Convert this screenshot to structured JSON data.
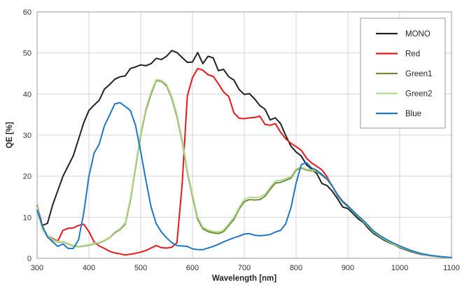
{
  "chart_data": {
    "type": "line",
    "title": "",
    "xlabel": "Wavelength [nm]",
    "ylabel": "QE [%]",
    "xlim": [
      300,
      1100
    ],
    "ylim": [
      0,
      60
    ],
    "x_ticks": [
      300,
      400,
      500,
      600,
      700,
      800,
      900,
      1000,
      1100
    ],
    "y_ticks": [
      0,
      10,
      20,
      30,
      40,
      50,
      60
    ],
    "x_tick_labels": [
      "300",
      "400",
      "500",
      "600",
      "700",
      "800",
      "900",
      "1000",
      "1100"
    ],
    "y_tick_labels": [
      "0",
      "10",
      "20",
      "30",
      "40",
      "50",
      "60"
    ],
    "grid": true,
    "legend_position": "top-right",
    "series": [
      {
        "name": "MONO",
        "color": "#222222",
        "x": [
          300,
          310,
          320,
          330,
          340,
          350,
          360,
          370,
          380,
          390,
          400,
          410,
          420,
          430,
          440,
          450,
          460,
          470,
          480,
          490,
          500,
          510,
          520,
          530,
          540,
          550,
          560,
          570,
          580,
          590,
          600,
          610,
          620,
          630,
          640,
          650,
          660,
          670,
          680,
          690,
          700,
          710,
          720,
          730,
          740,
          750,
          760,
          770,
          780,
          790,
          800,
          810,
          820,
          830,
          840,
          850,
          860,
          870,
          880,
          890,
          900,
          910,
          920,
          930,
          940,
          950,
          960,
          970,
          980,
          990,
          1000,
          1020,
          1040,
          1060,
          1080,
          1100
        ],
        "values": [
          12.8,
          8,
          8.5,
          13,
          16.5,
          20,
          22.5,
          25,
          29,
          33,
          36,
          37.3,
          38.5,
          41.2,
          42.3,
          43.6,
          44.2,
          44.4,
          46.2,
          46.6,
          47.1,
          46.9,
          47.4,
          48.7,
          48.4,
          49.2,
          50.6,
          50.1,
          48.9,
          47.7,
          47.8,
          50.1,
          47.4,
          49.2,
          48.8,
          45.7,
          46,
          44.2,
          43.4,
          41.1,
          39.9,
          40.1,
          38.8,
          37.2,
          36.3,
          33.7,
          34.2,
          32.8,
          29.9,
          27.3,
          25.9,
          24.9,
          22.8,
          21.7,
          20.6,
          18.2,
          17.7,
          16.3,
          14.5,
          12.5,
          12.1,
          10.9,
          9.6,
          8.7,
          7.2,
          6,
          5.2,
          4.4,
          3.8,
          3.3,
          2.6,
          1.7,
          1,
          0.6,
          0.3,
          0.1
        ]
      },
      {
        "name": "Red",
        "color": "#e8191c",
        "x": [
          300,
          310,
          320,
          330,
          340,
          350,
          360,
          370,
          380,
          390,
          400,
          410,
          420,
          430,
          440,
          450,
          460,
          470,
          480,
          490,
          500,
          510,
          520,
          530,
          540,
          550,
          560,
          570,
          580,
          590,
          600,
          610,
          620,
          630,
          640,
          650,
          660,
          670,
          680,
          690,
          700,
          710,
          720,
          730,
          740,
          750,
          760,
          770,
          780,
          790,
          800,
          810,
          820,
          830,
          840,
          850,
          860,
          870,
          880,
          890,
          900,
          910,
          920,
          930,
          940,
          950,
          960,
          970,
          980,
          990,
          1000,
          1020,
          1040,
          1060,
          1080,
          1100
        ],
        "values": [
          12.8,
          7.5,
          5.5,
          4.8,
          4.2,
          6.8,
          7.3,
          7.4,
          8,
          8.3,
          6.5,
          4,
          3,
          2.4,
          1.7,
          1.3,
          1.1,
          0.8,
          1,
          1.2,
          1.5,
          1.9,
          2.5,
          3.1,
          2.6,
          2.5,
          2.7,
          3.8,
          18,
          39.5,
          44,
          46.2,
          45.8,
          44.7,
          44.3,
          42.5,
          40.5,
          39.4,
          35.4,
          34.1,
          34,
          34.2,
          34.3,
          34.6,
          32.6,
          32.4,
          32.8,
          30.7,
          29.1,
          28,
          27.2,
          26.3,
          24.4,
          23.2,
          22.4,
          21.5,
          19.8,
          17.5,
          15.5,
          13.9,
          12.8,
          11.5,
          10.2,
          9,
          7.7,
          6.4,
          5.5,
          4.7,
          4,
          3.4,
          2.8,
          1.9,
          1.1,
          0.6,
          0.3,
          0.1
        ]
      },
      {
        "name": "Green1",
        "color": "#6d8d3a",
        "x": [
          300,
          310,
          320,
          330,
          340,
          350,
          360,
          370,
          380,
          390,
          400,
          410,
          420,
          430,
          440,
          450,
          460,
          470,
          480,
          490,
          500,
          510,
          520,
          530,
          540,
          550,
          560,
          570,
          580,
          590,
          600,
          610,
          620,
          630,
          640,
          650,
          660,
          670,
          680,
          690,
          700,
          710,
          720,
          730,
          740,
          750,
          760,
          770,
          780,
          790,
          800,
          810,
          820,
          830,
          840,
          850,
          860,
          870,
          880,
          890,
          900,
          910,
          920,
          930,
          940,
          950,
          960,
          970,
          980,
          990,
          1000,
          1020,
          1040,
          1060,
          1080,
          1100
        ],
        "values": [
          12.5,
          7.2,
          5.4,
          4.5,
          4,
          4,
          3.5,
          3,
          2.8,
          3,
          3.2,
          3.5,
          3.8,
          4.3,
          5,
          6.2,
          7,
          8.3,
          14,
          22,
          30,
          36,
          40,
          43.3,
          43.1,
          42,
          39,
          34.5,
          28.5,
          21,
          15,
          9.5,
          7.2,
          6.5,
          6.2,
          6,
          6.5,
          8,
          9.5,
          12,
          13.8,
          14.3,
          14.2,
          14.3,
          15.1,
          16.8,
          18.3,
          18.5,
          19,
          19.5,
          21.5,
          22,
          21.5,
          21.3,
          21.1,
          20.2,
          19.2,
          17.5,
          15.2,
          13.6,
          12.5,
          11.3,
          10.1,
          8.9,
          7.6,
          6.3,
          5.4,
          4.6,
          3.9,
          3.3,
          2.7,
          1.8,
          1.1,
          0.6,
          0.3,
          0.1
        ]
      },
      {
        "name": "Green2",
        "color": "#b5d98e",
        "x": [
          300,
          310,
          320,
          330,
          340,
          350,
          360,
          370,
          380,
          390,
          400,
          410,
          420,
          430,
          440,
          450,
          460,
          470,
          480,
          490,
          500,
          510,
          520,
          530,
          540,
          550,
          560,
          570,
          580,
          590,
          600,
          610,
          620,
          630,
          640,
          650,
          660,
          670,
          680,
          690,
          700,
          710,
          720,
          730,
          740,
          750,
          760,
          770,
          780,
          790,
          800,
          810,
          820,
          830,
          840,
          850,
          860,
          870,
          880,
          890,
          900,
          910,
          920,
          930,
          940,
          950,
          960,
          970,
          980,
          990,
          1000,
          1020,
          1040,
          1060,
          1080,
          1100
        ],
        "values": [
          12.6,
          7.3,
          5.5,
          4.6,
          4.1,
          4.1,
          3.6,
          3.1,
          2.9,
          3.1,
          3.3,
          3.6,
          3.9,
          4.4,
          5.1,
          6.4,
          7.2,
          8.6,
          14.5,
          22.5,
          30.5,
          36.5,
          40.5,
          43.5,
          43.3,
          42.3,
          39.4,
          35,
          29,
          21.5,
          15.5,
          10,
          7.6,
          6.9,
          6.6,
          6.4,
          6.9,
          8.4,
          10,
          12.4,
          14.3,
          14.9,
          14.8,
          14.9,
          15.6,
          17.3,
          18.8,
          19,
          19.4,
          19.9,
          21.8,
          22.2,
          21.7,
          21.5,
          21.3,
          20.4,
          19.4,
          17.6,
          15.3,
          13.7,
          12.6,
          11.4,
          10.2,
          9,
          7.7,
          6.4,
          5.5,
          4.7,
          4,
          3.4,
          2.8,
          1.9,
          1.1,
          0.6,
          0.3,
          0.1
        ]
      },
      {
        "name": "Blue",
        "color": "#1e78c2",
        "x": [
          300,
          310,
          320,
          330,
          340,
          350,
          360,
          370,
          380,
          390,
          400,
          410,
          420,
          430,
          440,
          450,
          460,
          470,
          480,
          490,
          500,
          510,
          520,
          530,
          540,
          550,
          560,
          570,
          580,
          590,
          600,
          610,
          620,
          630,
          640,
          650,
          660,
          670,
          680,
          690,
          700,
          710,
          720,
          730,
          740,
          750,
          760,
          770,
          780,
          790,
          800,
          810,
          820,
          830,
          840,
          850,
          860,
          870,
          880,
          890,
          900,
          910,
          920,
          930,
          940,
          950,
          960,
          970,
          980,
          990,
          1000,
          1020,
          1040,
          1060,
          1080,
          1100
        ],
        "values": [
          11.7,
          8,
          5.2,
          4,
          2.9,
          3.5,
          2.4,
          2.4,
          4.5,
          11,
          20,
          25.6,
          27.8,
          32.3,
          34.9,
          37.6,
          37.9,
          37,
          36,
          32.4,
          26,
          19,
          12.5,
          8.4,
          6.4,
          5,
          3.8,
          3.1,
          3,
          2.9,
          2.3,
          2.1,
          2.1,
          2.5,
          2.9,
          3.4,
          4,
          4.5,
          5,
          5.4,
          5.9,
          6,
          5.6,
          5.5,
          5.6,
          5.8,
          6.4,
          6.8,
          8.4,
          12.3,
          18.3,
          22.8,
          23.3,
          22,
          21.4,
          20.4,
          19.3,
          17.6,
          15.4,
          13.8,
          12.7,
          11.5,
          10.3,
          9.2,
          7.9,
          6.6,
          5.7,
          4.9,
          4.2,
          3.6,
          3,
          2,
          1.2,
          0.7,
          0.4,
          0.2
        ]
      }
    ]
  }
}
